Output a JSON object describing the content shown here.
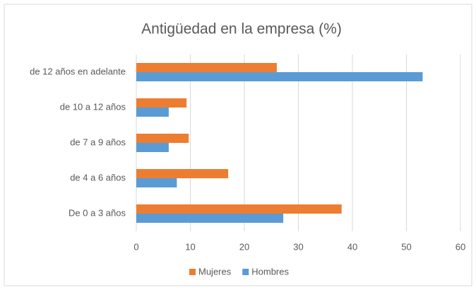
{
  "chart_data": {
    "type": "hbar",
    "title": "Antigüedad en la empresa (%)",
    "categories": [
      "De 0 a 3 años",
      "de 4 a 6 años",
      "de 7 a 9 años",
      "de 10 a 12 años",
      "de 12 años en adelante"
    ],
    "series": [
      {
        "name": "Mujeres",
        "color": "#ed7d31",
        "values": [
          38,
          17,
          9.7,
          9.3,
          26
        ]
      },
      {
        "name": "Hombres",
        "color": "#5b9bd5",
        "values": [
          27.2,
          7.5,
          6,
          6,
          53
        ]
      }
    ],
    "xlim": [
      0,
      60
    ],
    "xticks": [
      0,
      10,
      20,
      30,
      40,
      50,
      60
    ],
    "grid": true,
    "legend": "bottom"
  }
}
